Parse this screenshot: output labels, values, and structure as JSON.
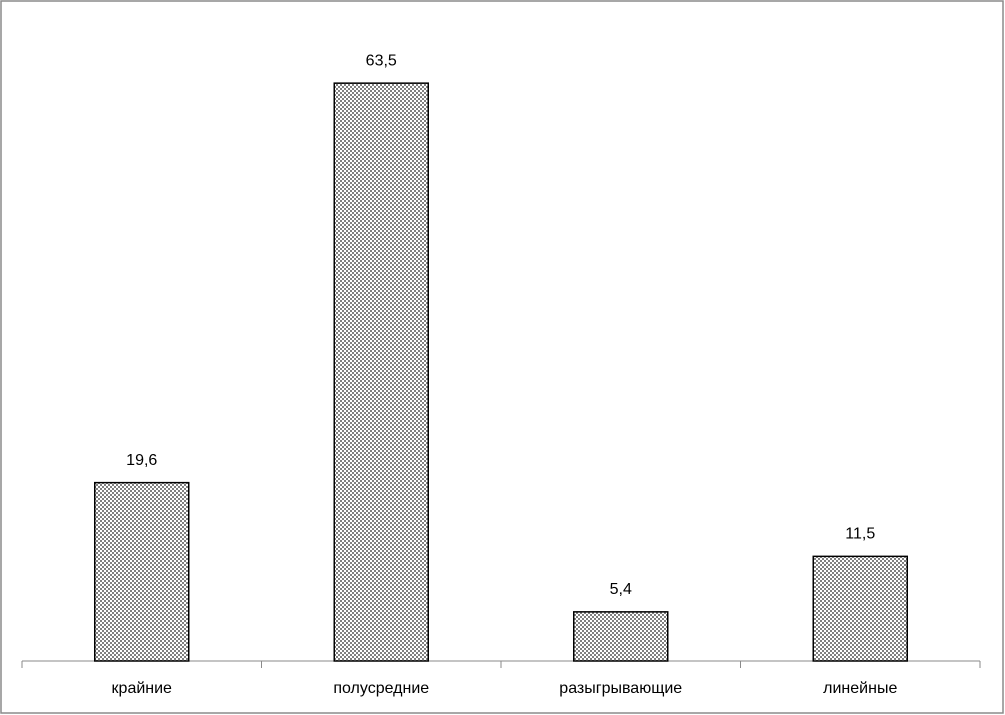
{
  "chart_data": {
    "type": "bar",
    "categories": [
      "крайние",
      "полусредние",
      "разыгрывающие",
      "линейные"
    ],
    "values": [
      19.6,
      63.5,
      5.4,
      11.5
    ],
    "value_labels": [
      "19,6",
      "63,5",
      "5,4",
      "11,5"
    ],
    "color": "#808080"
  }
}
